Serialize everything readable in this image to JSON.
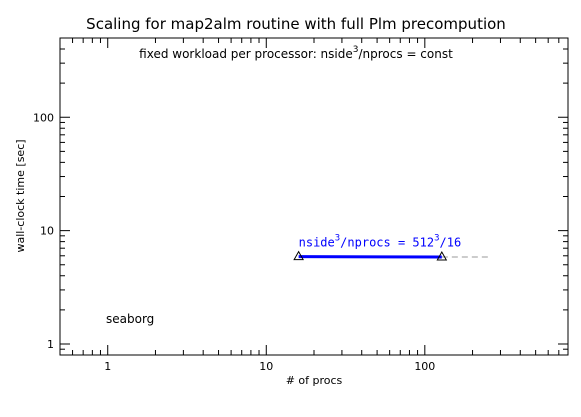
{
  "chart_data": {
    "type": "scatter",
    "title": "Scaling for map2alm routine with full Plm precompution",
    "subtitle": {
      "prefix": "fixed workload per processor: nside",
      "sup": "3",
      "suffix": "/nprocs = const"
    },
    "xlabel": "# of procs",
    "ylabel": "wall-clock time [sec]",
    "xscale": "log",
    "yscale": "log",
    "xlim": [
      0.5,
      800
    ],
    "ylim": [
      0.8,
      500
    ],
    "xticks": [
      {
        "value": 1,
        "label": "1"
      },
      {
        "value": 10,
        "label": "10"
      },
      {
        "value": 100,
        "label": "100"
      }
    ],
    "yticks": [
      {
        "value": 1,
        "label": "1"
      },
      {
        "value": 10,
        "label": "10"
      },
      {
        "value": 100,
        "label": "100"
      }
    ],
    "grid": false,
    "annotation_label": "seaborg",
    "series": [
      {
        "label_parts": {
          "a": "nside",
          "a_sup": "3",
          "b": "/nprocs = 512",
          "b_sup": "3",
          "c": "/16"
        },
        "color": "#0000ff",
        "points": [
          {
            "x": 16,
            "y": 5.9
          },
          {
            "x": 128,
            "y": 5.85
          }
        ],
        "extrapolation": {
          "x": [
            128,
            256
          ],
          "y": [
            5.85,
            5.85
          ],
          "color": "#999999"
        }
      }
    ]
  }
}
